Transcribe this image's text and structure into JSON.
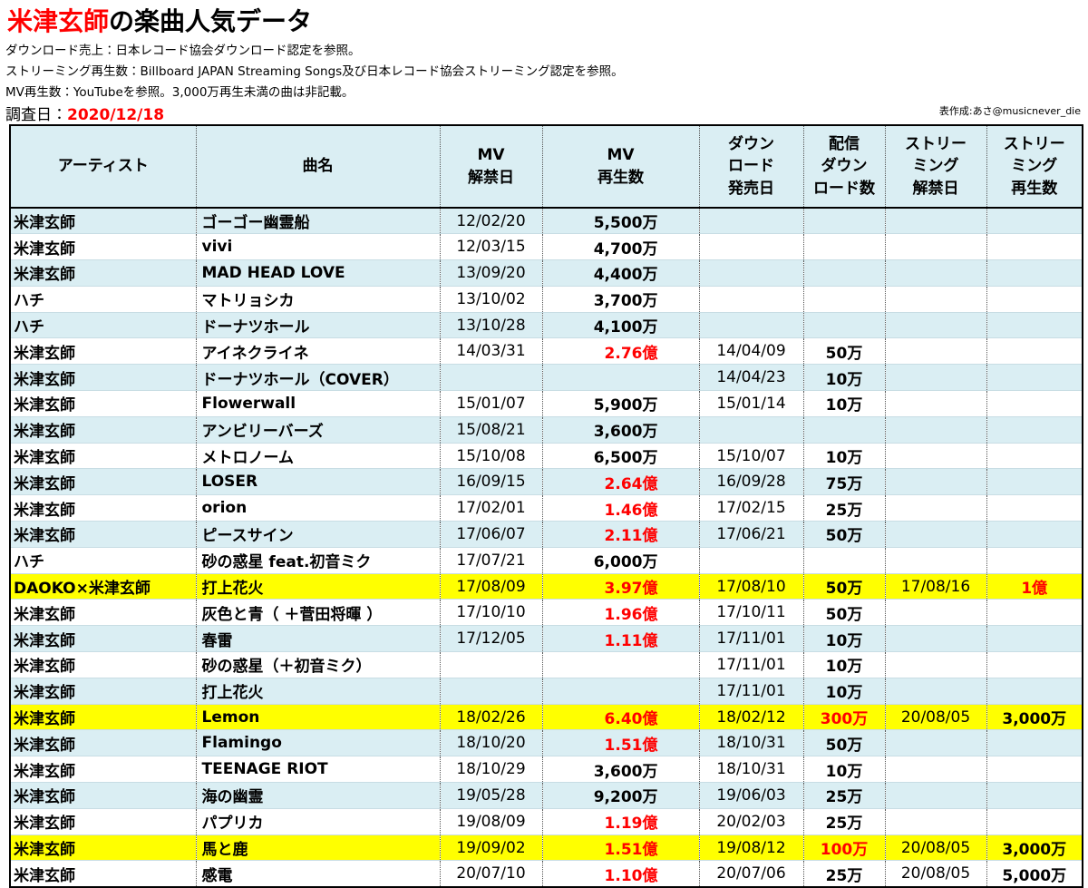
{
  "header": {
    "title_highlight": "米津玄師",
    "title_rest": "の楽曲人気データ",
    "notes": [
      "ダウンロード売上：日本レコード協会ダウンロード認定を参照。",
      "ストリーミング再生数：Billboard JAPAN Streaming Songs及び日本レコード協会ストリーミング認定を参照。",
      "MV再生数：YouTubeを参照。3,000万再生未満の曲は非記載。"
    ],
    "survey_label": "調査日：",
    "survey_date": "2020/12/18",
    "credit": "表作成:あさ@musicnever_die"
  },
  "table": {
    "columns": [
      [
        "アーティスト"
      ],
      [
        "曲名"
      ],
      [
        "MV",
        "解禁日"
      ],
      [
        "MV",
        "再生数"
      ],
      [
        "ダウン",
        "ロード",
        "発売日"
      ],
      [
        "配信",
        "ダウン",
        "ロード数"
      ],
      [
        "ストリー",
        "ミング",
        "解禁日"
      ],
      [
        "ストリー",
        "ミング",
        "再生数"
      ]
    ],
    "rows": [
      [
        "米津玄師",
        "ゴーゴー幽霊船",
        "12/02/20",
        "5,500万",
        null,
        null,
        null,
        null
      ],
      [
        "米津玄師",
        "vivi",
        "12/03/15",
        "4,700万",
        null,
        null,
        null,
        null
      ],
      [
        "米津玄師",
        "MAD HEAD LOVE",
        "13/09/20",
        "4,400万",
        null,
        null,
        null,
        null
      ],
      [
        "ハチ",
        "マトリョシカ",
        "13/10/02",
        "3,700万",
        null,
        null,
        null,
        null
      ],
      [
        "ハチ",
        "ドーナツホール",
        "13/10/28",
        "4,100万",
        null,
        null,
        null,
        null
      ],
      [
        "米津玄師",
        "アイネクライネ",
        "14/03/31",
        "2.76億",
        "14/04/09",
        "50万",
        null,
        null
      ],
      [
        "米津玄師",
        "ドーナツホール（COVER）",
        null,
        null,
        "14/04/23",
        "10万",
        null,
        null
      ],
      [
        "米津玄師",
        "Flowerwall",
        "15/01/07",
        "5,900万",
        "15/01/14",
        "10万",
        null,
        null
      ],
      [
        "米津玄師",
        "アンビリーバーズ",
        "15/08/21",
        "3,600万",
        null,
        null,
        null,
        null
      ],
      [
        "米津玄師",
        "メトロノーム",
        "15/10/08",
        "6,500万",
        "15/10/07",
        "10万",
        null,
        null
      ],
      [
        "米津玄師",
        "LOSER",
        "16/09/15",
        "2.64億",
        "16/09/28",
        "75万",
        null,
        null
      ],
      [
        "米津玄師",
        "orion",
        "17/02/01",
        "1.46億",
        "17/02/15",
        "25万",
        null,
        null
      ],
      [
        "米津玄師",
        "ピースサイン",
        "17/06/07",
        "2.11億",
        "17/06/21",
        "50万",
        null,
        null
      ],
      [
        "ハチ",
        "砂の惑星 feat.初音ミク",
        "17/07/21",
        "6,000万",
        null,
        null,
        null,
        null
      ],
      [
        "DAOKO×米津玄師",
        "打上花火",
        "17/08/09",
        "3.97億",
        "17/08/10",
        "50万",
        "17/08/16",
        "1億"
      ],
      [
        "米津玄師",
        "灰色と青（ ＋菅田将暉 ）",
        "17/10/10",
        "1.96億",
        "17/10/11",
        "50万",
        null,
        null
      ],
      [
        "米津玄師",
        "春雷",
        "17/12/05",
        "1.11億",
        "17/11/01",
        "10万",
        null,
        null
      ],
      [
        "米津玄師",
        "砂の惑星（＋初音ミク）",
        null,
        null,
        "17/11/01",
        "10万",
        null,
        null
      ],
      [
        "米津玄師",
        "打上花火",
        null,
        null,
        "17/11/01",
        "10万",
        null,
        null
      ],
      [
        "米津玄師",
        "Lemon",
        "18/02/26",
        "6.40億",
        "18/02/12",
        "300万",
        "20/08/05",
        "3,000万"
      ],
      [
        "米津玄師",
        "Flamingo",
        "18/10/20",
        "1.51億",
        "18/10/31",
        "50万",
        null,
        null
      ],
      [
        "米津玄師",
        "TEENAGE RIOT",
        "18/10/29",
        "3,600万",
        "18/10/31",
        "10万",
        null,
        null
      ],
      [
        "米津玄師",
        "海の幽霊",
        "19/05/28",
        "9,200万",
        "19/06/03",
        "25万",
        null,
        null
      ],
      [
        "米津玄師",
        "パプリカ",
        "19/08/09",
        "1.19億",
        "20/02/03",
        "25万",
        null,
        null
      ],
      [
        "米津玄師",
        "馬と鹿",
        "19/09/02",
        "1.51億",
        "19/08/12",
        "100万",
        "20/08/05",
        "3,000万"
      ],
      [
        "米津玄師",
        "感電",
        "20/07/10",
        "1.10億",
        "20/07/06",
        "25万",
        "20/08/05",
        "5,000万"
      ]
    ],
    "highlight_color": "#ffff00",
    "highlight_rows": [
      14,
      19,
      24
    ],
    "emphasis_color": "#ff0000",
    "emphasis_cells": [
      [
        5,
        3
      ],
      [
        10,
        3
      ],
      [
        11,
        3
      ],
      [
        12,
        3
      ],
      [
        14,
        3
      ],
      [
        14,
        7
      ],
      [
        15,
        3
      ],
      [
        16,
        3
      ],
      [
        19,
        3
      ],
      [
        19,
        5
      ],
      [
        20,
        3
      ],
      [
        23,
        3
      ],
      [
        24,
        3
      ],
      [
        24,
        5
      ],
      [
        25,
        3
      ]
    ]
  }
}
